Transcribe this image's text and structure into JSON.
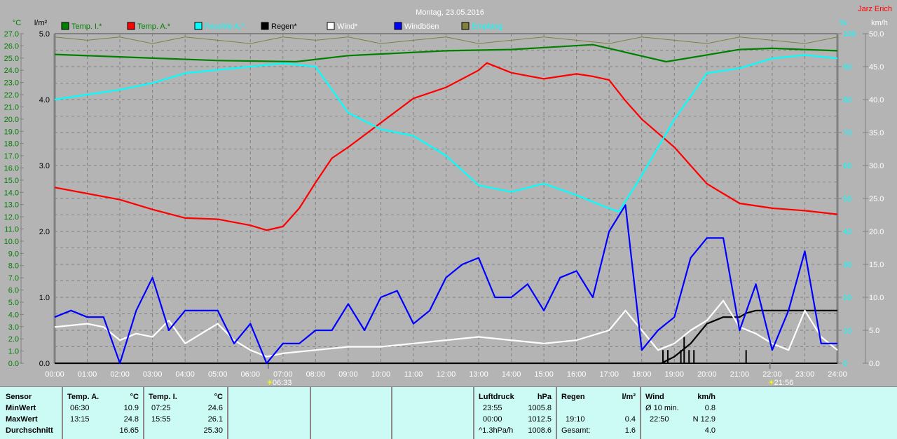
{
  "chart_data": {
    "type": "line",
    "title": "Montag, 23.05.2016",
    "author": "Jarz Erich",
    "x_ticks": [
      "00:00",
      "01:00",
      "02:00",
      "03:00",
      "04:00",
      "05:00",
      "06:00",
      "07:00",
      "08:00",
      "09:00",
      "10:00",
      "11:00",
      "12:00",
      "13:00",
      "14:00",
      "15:00",
      "16:00",
      "17:00",
      "18:00",
      "19:00",
      "20:00",
      "21:00",
      "22:00",
      "23:00",
      "24:00"
    ],
    "xlim_hours": [
      0,
      24
    ],
    "axes": {
      "temp": {
        "unit": "°C",
        "range": [
          0,
          27
        ],
        "ticks": [
          "27.0",
          "26.0",
          "25.0",
          "24.0",
          "23.0",
          "22.0",
          "21.0",
          "20.0",
          "19.0",
          "18.0",
          "17.0",
          "16.0",
          "15.0",
          "14.0",
          "13.0",
          "12.0",
          "11.0",
          "10.0",
          "9.0",
          "8.0",
          "7.0",
          "6.0",
          "5.0",
          "4.0",
          "3.0",
          "2.0",
          "1.0",
          "0.0"
        ]
      },
      "rain": {
        "unit": "l/m²",
        "range": [
          0,
          5
        ],
        "ticks": [
          "5.0",
          "4.0",
          "3.0",
          "2.0",
          "1.0",
          "0.0"
        ]
      },
      "humidity": {
        "unit": "%",
        "range": [
          0,
          100
        ],
        "ticks": [
          "100",
          "90",
          "80",
          "70",
          "60",
          "50",
          "40",
          "30",
          "20",
          "10",
          "0"
        ]
      },
      "wind": {
        "unit": "km/h",
        "range": [
          0,
          50
        ],
        "ticks": [
          "50.0",
          "45.0",
          "40.0",
          "35.0",
          "30.0",
          "25.0",
          "20.0",
          "15.0",
          "10.0",
          "5.0",
          "0.0"
        ]
      }
    },
    "legend": [
      {
        "name": "Temp. I.*",
        "color": "#008000",
        "text_color": "#008000"
      },
      {
        "name": "Temp. A.*",
        "color": "#ff0000",
        "text_color": "#008000"
      },
      {
        "name": "Feuchte A.*",
        "color": "#00ffff",
        "text_color": "#00ffff"
      },
      {
        "name": "Regen*",
        "color": "#000000",
        "text_color": "#000000"
      },
      {
        "name": "Wind*",
        "color": "#ffffff",
        "text_color": "#ffffff"
      },
      {
        "name": "Windböen",
        "color": "#0000ff",
        "text_color": "#ffffff"
      },
      {
        "name": "Empfang",
        "color": "#808040",
        "text_color": "#00ffff"
      }
    ],
    "series": [
      {
        "name": "Temp. I.",
        "axis": "temp",
        "color": "#008000",
        "x": [
          0,
          2,
          5,
          7.4,
          9,
          12,
          14,
          16.5,
          18.75,
          21,
          22,
          24
        ],
        "y": [
          25.3,
          25.1,
          24.8,
          24.7,
          25.2,
          25.6,
          25.7,
          26.1,
          24.7,
          25.7,
          25.8,
          25.6
        ]
      },
      {
        "name": "Temp. A.",
        "axis": "temp",
        "color": "#ff0000",
        "x": [
          0,
          1,
          2,
          3,
          4,
          5,
          6,
          6.5,
          7,
          7.5,
          8,
          8.5,
          9,
          10,
          11,
          12,
          13,
          13.25,
          14,
          15,
          16,
          16.5,
          17,
          17.5,
          18,
          19,
          20,
          21,
          22,
          23,
          24
        ],
        "y": [
          14.4,
          13.9,
          13.4,
          12.6,
          11.9,
          11.8,
          11.3,
          10.9,
          11.2,
          12.7,
          14.8,
          16.8,
          17.7,
          19.7,
          21.7,
          22.6,
          24.0,
          24.6,
          23.8,
          23.3,
          23.7,
          23.5,
          23.2,
          21.5,
          20.0,
          17.7,
          14.7,
          13.1,
          12.7,
          12.5,
          12.2
        ]
      },
      {
        "name": "Feuchte A.",
        "axis": "humidity",
        "color": "#00ffff",
        "x": [
          0,
          1,
          2,
          3,
          4,
          5,
          6,
          7,
          8,
          9,
          10,
          11,
          12,
          13,
          14,
          15,
          16,
          17,
          17.3,
          18,
          19,
          20,
          21,
          22,
          23,
          24
        ],
        "y": [
          80,
          81.5,
          83,
          85,
          88,
          89,
          90,
          91,
          90,
          76,
          71,
          69,
          63,
          54,
          52,
          54.5,
          51,
          47,
          46,
          57,
          74,
          88,
          89.5,
          92.5,
          93.5,
          92.5
        ]
      },
      {
        "name": "Regen",
        "axis": "rain",
        "color": "#000000",
        "x": [
          0,
          18.6,
          19,
          19.5,
          20,
          20.5,
          21,
          21.2,
          21.5,
          22,
          24
        ],
        "y": [
          0,
          0,
          0.1,
          0.3,
          0.6,
          0.7,
          0.7,
          0.76,
          0.8,
          0.8,
          0.8
        ]
      },
      {
        "name": "Wind",
        "axis": "wind",
        "color": "#ffffff",
        "x": [
          0,
          1,
          1.5,
          2,
          2.5,
          3,
          3.5,
          4,
          4.5,
          5,
          5.5,
          6,
          6.5,
          7,
          8,
          9,
          10,
          11,
          12,
          13,
          14,
          15,
          16,
          17,
          17.5,
          18,
          18.5,
          19,
          19.5,
          20,
          20.5,
          21,
          21.5,
          22,
          22.5,
          23,
          23.5,
          24
        ],
        "y": [
          5.5,
          6,
          5.5,
          3.5,
          4.5,
          4,
          6.5,
          3,
          4.5,
          6,
          3.5,
          2,
          1,
          1.5,
          2,
          2.5,
          2.5,
          3,
          3.5,
          4,
          3.5,
          3,
          3.5,
          5,
          8,
          5,
          2,
          3,
          5,
          6.5,
          9.5,
          5.5,
          4.5,
          3,
          2,
          8,
          4,
          2
        ]
      },
      {
        "name": "Windböen",
        "axis": "wind",
        "color": "#0000ff",
        "x": [
          0,
          0.5,
          1,
          1.5,
          2,
          2.5,
          3,
          3.5,
          4,
          4.5,
          5,
          5.5,
          6,
          6.5,
          7,
          7.5,
          8,
          8.5,
          9,
          9.5,
          10,
          10.5,
          11,
          11.5,
          12,
          12.5,
          13,
          13.5,
          14,
          14.5,
          15,
          15.5,
          16,
          16.5,
          17,
          17.5,
          18,
          18.5,
          19,
          19.5,
          20,
          20.5,
          21,
          21.5,
          22,
          22.5,
          23,
          23.5,
          24
        ],
        "y": [
          7,
          8,
          7,
          7,
          0,
          8,
          13,
          5,
          8,
          8,
          8,
          3,
          6,
          0,
          3,
          3,
          5,
          5,
          9,
          5,
          10,
          11,
          6,
          8,
          13,
          15,
          16,
          10,
          10,
          12,
          8,
          13,
          14,
          10,
          20,
          24,
          2,
          5,
          7,
          16,
          19,
          19,
          5,
          12,
          2,
          8,
          17,
          3,
          3
        ]
      },
      {
        "name": "Empfang",
        "axis": "humidity",
        "color": "#808040",
        "x": [
          0,
          1,
          2,
          3,
          4,
          5,
          6,
          7,
          8,
          9,
          10,
          11,
          12,
          13,
          14,
          15,
          16,
          17,
          18,
          19,
          20,
          21,
          22,
          23,
          24
        ],
        "y": [
          99,
          98,
          99,
          97,
          99,
          98,
          97,
          99,
          98,
          99,
          97,
          98,
          99,
          97,
          98,
          99,
          98,
          97,
          99,
          98,
          97,
          99,
          98,
          97,
          99
        ]
      }
    ],
    "rain_bars": {
      "x": [
        18.65,
        18.8,
        19.2,
        19.3,
        19.45,
        19.6,
        21.2
      ],
      "y": [
        0.2,
        0.2,
        0.2,
        0.4,
        0.2,
        0.2,
        0.2
      ]
    },
    "annotations": {
      "sunrise": "06:33",
      "sunset": "21:56",
      "sunrise_hour": 6.55,
      "sunset_hour": 21.93
    }
  },
  "table": {
    "sensor": {
      "header": "Sensor",
      "rows": [
        "MinWert",
        "MaxWert",
        "Durchschnitt"
      ]
    },
    "temp_a": {
      "header": "Temp. A.",
      "unit": "°C",
      "min_time": "06:30",
      "min": "10.9",
      "max_time": "13:15",
      "max": "24.8",
      "avg": "16.65"
    },
    "temp_i": {
      "header": "Temp. I.",
      "unit": "°C",
      "min_time": "07:25",
      "min": "24.6",
      "max_time": "15:55",
      "max": "26.1",
      "avg": "25.30"
    },
    "pressure": {
      "header": "Luftdruck",
      "unit": "hPa",
      "r1_label": "23:55",
      "r1": "1005.8",
      "r2_label": "00:00",
      "r2": "1012.5",
      "r3_label": "^1.3hPa/h",
      "r3": "1008.6"
    },
    "rain": {
      "header": "Regen",
      "unit": "l/m²",
      "r2_label": "19:10",
      "r2": "0.4",
      "r3_label": "Gesamt:",
      "r3": "1.6"
    },
    "wind": {
      "header": "Wind",
      "unit": "km/h",
      "r1_label": "Ø 10 min.",
      "r1": "0.8",
      "r2_label": "22:50",
      "r2": "N 12.9",
      "r3": "4.0"
    }
  }
}
